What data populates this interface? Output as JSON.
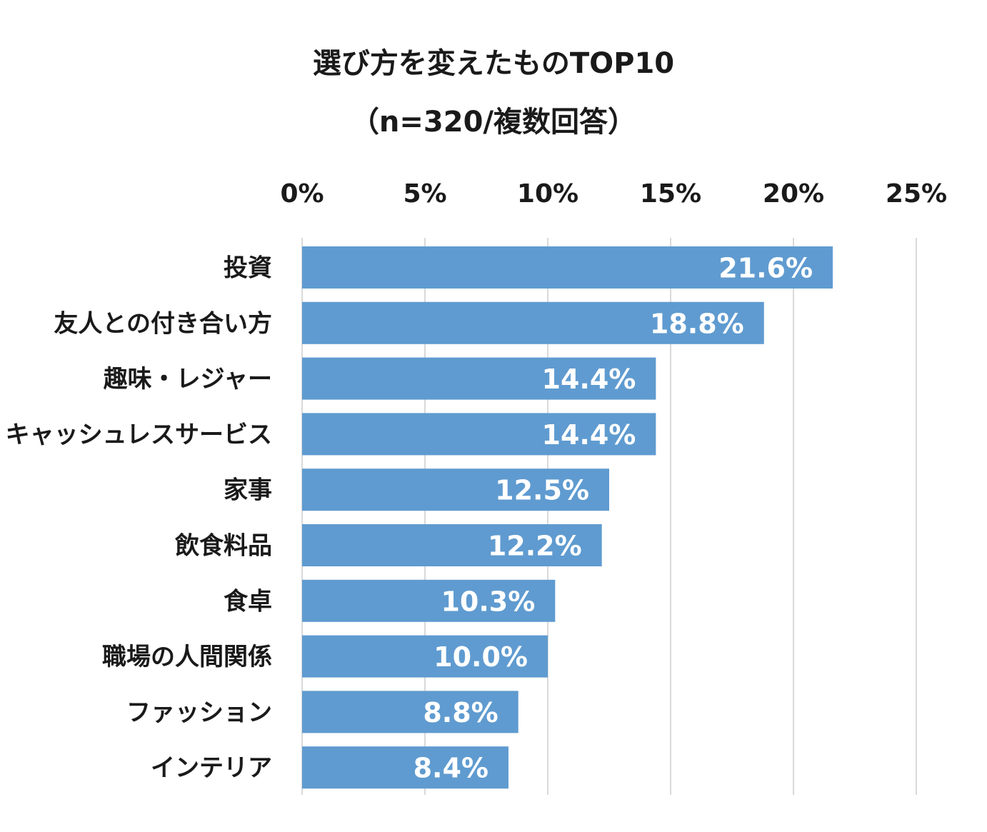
{
  "chart_data": {
    "type": "bar",
    "orientation": "horizontal",
    "title": "選び方を変えたものTOP10",
    "subtitle": "（n=320/複数回答）",
    "categories": [
      "投資",
      "友人との付き合い方",
      "趣味・レジャー",
      "キャッシュレスサービス",
      "家事",
      "飲食料品",
      "食卓",
      "職場の人間関係",
      "ファッション",
      "インテリア"
    ],
    "values": [
      21.6,
      18.8,
      14.4,
      14.4,
      12.5,
      12.2,
      10.3,
      10.0,
      8.8,
      8.4
    ],
    "value_labels": [
      "21.6%",
      "18.8%",
      "14.4%",
      "14.4%",
      "12.5%",
      "12.2%",
      "10.3%",
      "10.0%",
      "8.8%",
      "8.4%"
    ],
    "x_ticks": [
      "0%",
      "5%",
      "10%",
      "15%",
      "20%",
      "25%"
    ],
    "xlim": [
      0,
      25
    ],
    "xaxis_position": "top",
    "grid": true,
    "bar_color": "#5f9bd0",
    "grid_color": "#d9d9d9"
  }
}
